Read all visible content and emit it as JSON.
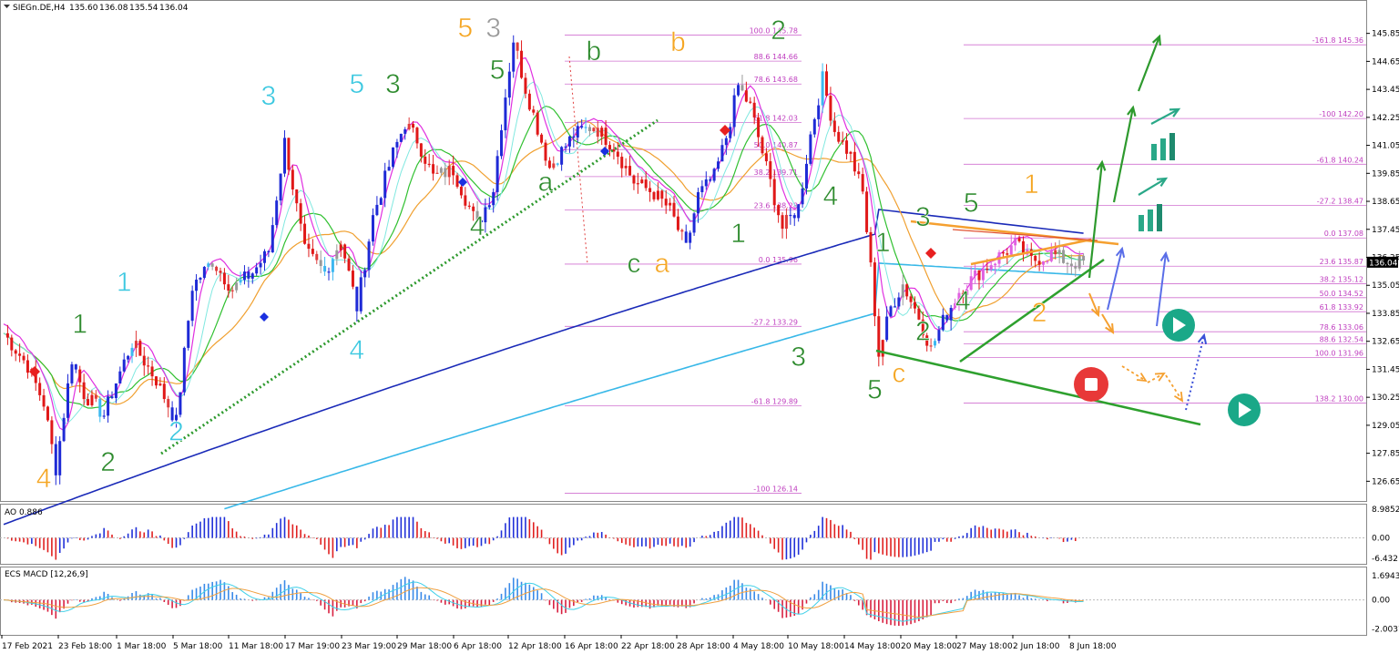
{
  "chart_data": [
    {
      "type": "candlestick",
      "header": {
        "symbol": "SIEGn.DE,H4",
        "open": "135.60",
        "high": "136.08",
        "low": "135.54",
        "close": "136.04"
      },
      "current_price": "136.04",
      "y_ticks": [
        "145.85",
        "144.65",
        "143.45",
        "142.25",
        "141.05",
        "139.85",
        "138.65",
        "137.45",
        "136.25",
        "135.05",
        "133.85",
        "132.65",
        "131.45",
        "130.25",
        "129.05",
        "127.85",
        "126.65"
      ],
      "ylim": [
        126.0,
        146.5
      ],
      "x_ticks": [
        "17 Feb 2021",
        "23 Feb 18:00",
        "1 Mar 18:00",
        "5 Mar 18:00",
        "11 Mar 18:00",
        "17 Mar 19:00",
        "23 Mar 19:00",
        "29 Mar 18:00",
        "6 Apr 18:00",
        "12 Apr 18:00",
        "16 Apr 18:00",
        "22 Apr 18:00",
        "28 Apr 18:00",
        "4 May 18:00",
        "10 May 18:00",
        "14 May 18:00",
        "20 May 18:00",
        "27 May 18:00",
        "2 Jun 18:00",
        "8 Jun 18:00"
      ],
      "fib_left": [
        {
          "label": "100.0 145.78",
          "price": 145.78
        },
        {
          "label": "88.6 144.66",
          "price": 144.66
        },
        {
          "label": "78.6 143.68",
          "price": 143.68
        },
        {
          "label": "61.8 142.03",
          "price": 142.03
        },
        {
          "label": "50.0 140.87",
          "price": 140.87
        },
        {
          "label": "38.2 139.71",
          "price": 139.71
        },
        {
          "label": "23.6 138.28",
          "price": 138.28
        },
        {
          "label": "0.0 135.96",
          "price": 135.96
        },
        {
          "label": "-27.2 133.29",
          "price": 133.29
        },
        {
          "label": "-61.8 129.89",
          "price": 129.89
        },
        {
          "label": "-100 126.14",
          "price": 126.14
        }
      ],
      "fib_right": [
        {
          "label": "-161.8 145.36",
          "price": 145.36
        },
        {
          "label": "-100 142.20",
          "price": 142.2
        },
        {
          "label": "-61.8 140.24",
          "price": 140.24
        },
        {
          "label": "-27.2 138.47",
          "price": 138.47
        },
        {
          "label": "0.0 137.08",
          "price": 137.08
        },
        {
          "label": "23.6 135.87",
          "price": 135.87
        },
        {
          "label": "38.2 135.12",
          "price": 135.12
        },
        {
          "label": "50.0 134.52",
          "price": 134.52
        },
        {
          "label": "61.8 133.92",
          "price": 133.92
        },
        {
          "label": "78.6 133.06",
          "price": 133.06
        },
        {
          "label": "88.6 132.54",
          "price": 132.54
        },
        {
          "label": "100.0 131.96",
          "price": 131.96
        },
        {
          "label": "138.2 130.00",
          "price": 130.0
        }
      ],
      "wave_labels": [
        {
          "text": "4",
          "color": "#f5a623",
          "x": 10,
          "p": 126.4
        },
        {
          "text": "2",
          "color": "#2e8b2e",
          "x": 26,
          "p": 127.1
        },
        {
          "text": "1",
          "color": "#2e8b2e",
          "x": 19,
          "p": 133.0
        },
        {
          "text": "1",
          "color": "#3cc8e0",
          "x": 30,
          "p": 134.8
        },
        {
          "text": "2",
          "color": "#3cc8e0",
          "x": 43,
          "p": 128.4
        },
        {
          "text": "3",
          "color": "#3cc8e0",
          "x": 66,
          "p": 142.8
        },
        {
          "text": "4",
          "color": "#3cc8e0",
          "x": 88,
          "p": 131.9
        },
        {
          "text": "5",
          "color": "#3cc8e0",
          "x": 88,
          "p": 143.3
        },
        {
          "text": "3",
          "color": "#2e8b2e",
          "x": 97,
          "p": 143.3
        },
        {
          "text": "4",
          "color": "#2e8b2e",
          "x": 118,
          "p": 137.2
        },
        {
          "text": "5",
          "color": "#2e8b2e",
          "x": 123,
          "p": 143.9
        },
        {
          "text": "5",
          "color": "#f5a623",
          "x": 115,
          "p": 145.7
        },
        {
          "text": "3",
          "color": "#999999",
          "x": 122,
          "p": 145.7
        },
        {
          "text": "a",
          "color": "#2e8b2e",
          "x": 135,
          "p": 139.1
        },
        {
          "text": "b",
          "color": "#2e8b2e",
          "x": 147,
          "p": 144.7
        },
        {
          "text": "c",
          "color": "#2e8b2e",
          "x": 157,
          "p": 135.6
        },
        {
          "text": "a",
          "color": "#f5a623",
          "x": 164,
          "p": 135.6
        },
        {
          "text": "b",
          "color": "#f5a623",
          "x": 168,
          "p": 145.1
        },
        {
          "text": "1",
          "color": "#2e8b2e",
          "x": 183,
          "p": 136.9
        },
        {
          "text": "2",
          "color": "#2e8b2e",
          "x": 193,
          "p": 145.6
        },
        {
          "text": "3",
          "color": "#2e8b2e",
          "x": 198,
          "p": 131.6
        },
        {
          "text": "4",
          "color": "#2e8b2e",
          "x": 206,
          "p": 138.5
        },
        {
          "text": "1",
          "color": "#2e8b2e",
          "x": 219,
          "p": 136.5
        },
        {
          "text": "5",
          "color": "#2e8b2e",
          "x": 217,
          "p": 130.2
        },
        {
          "text": "c",
          "color": "#f5a623",
          "x": 223,
          "p": 130.9
        },
        {
          "text": "2",
          "color": "#2e8b2e",
          "x": 229,
          "p": 132.7
        },
        {
          "text": "3",
          "color": "#2e8b2e",
          "x": 229,
          "p": 137.6
        },
        {
          "text": "4",
          "color": "#2e8b2e",
          "x": 239,
          "p": 134.0
        },
        {
          "text": "5",
          "color": "#2e8b2e",
          "x": 241,
          "p": 138.2
        },
        {
          "text": "1",
          "color": "#f5a623",
          "x": 256,
          "p": 139.0
        },
        {
          "text": "2",
          "color": "#f5a623",
          "x": 258,
          "p": 133.5
        }
      ]
    },
    {
      "type": "bar",
      "name": "AO 0.886",
      "y_ticks": [
        "8.9852",
        "0.00",
        "-6.432"
      ],
      "ylim": [
        -7.5,
        9.5
      ]
    },
    {
      "type": "bar",
      "name": "ECS MACD [12,26,9]",
      "y_ticks": [
        "1.6943",
        "0.00",
        "-2.0037"
      ],
      "ylim": [
        -2.3,
        2.0
      ]
    }
  ]
}
